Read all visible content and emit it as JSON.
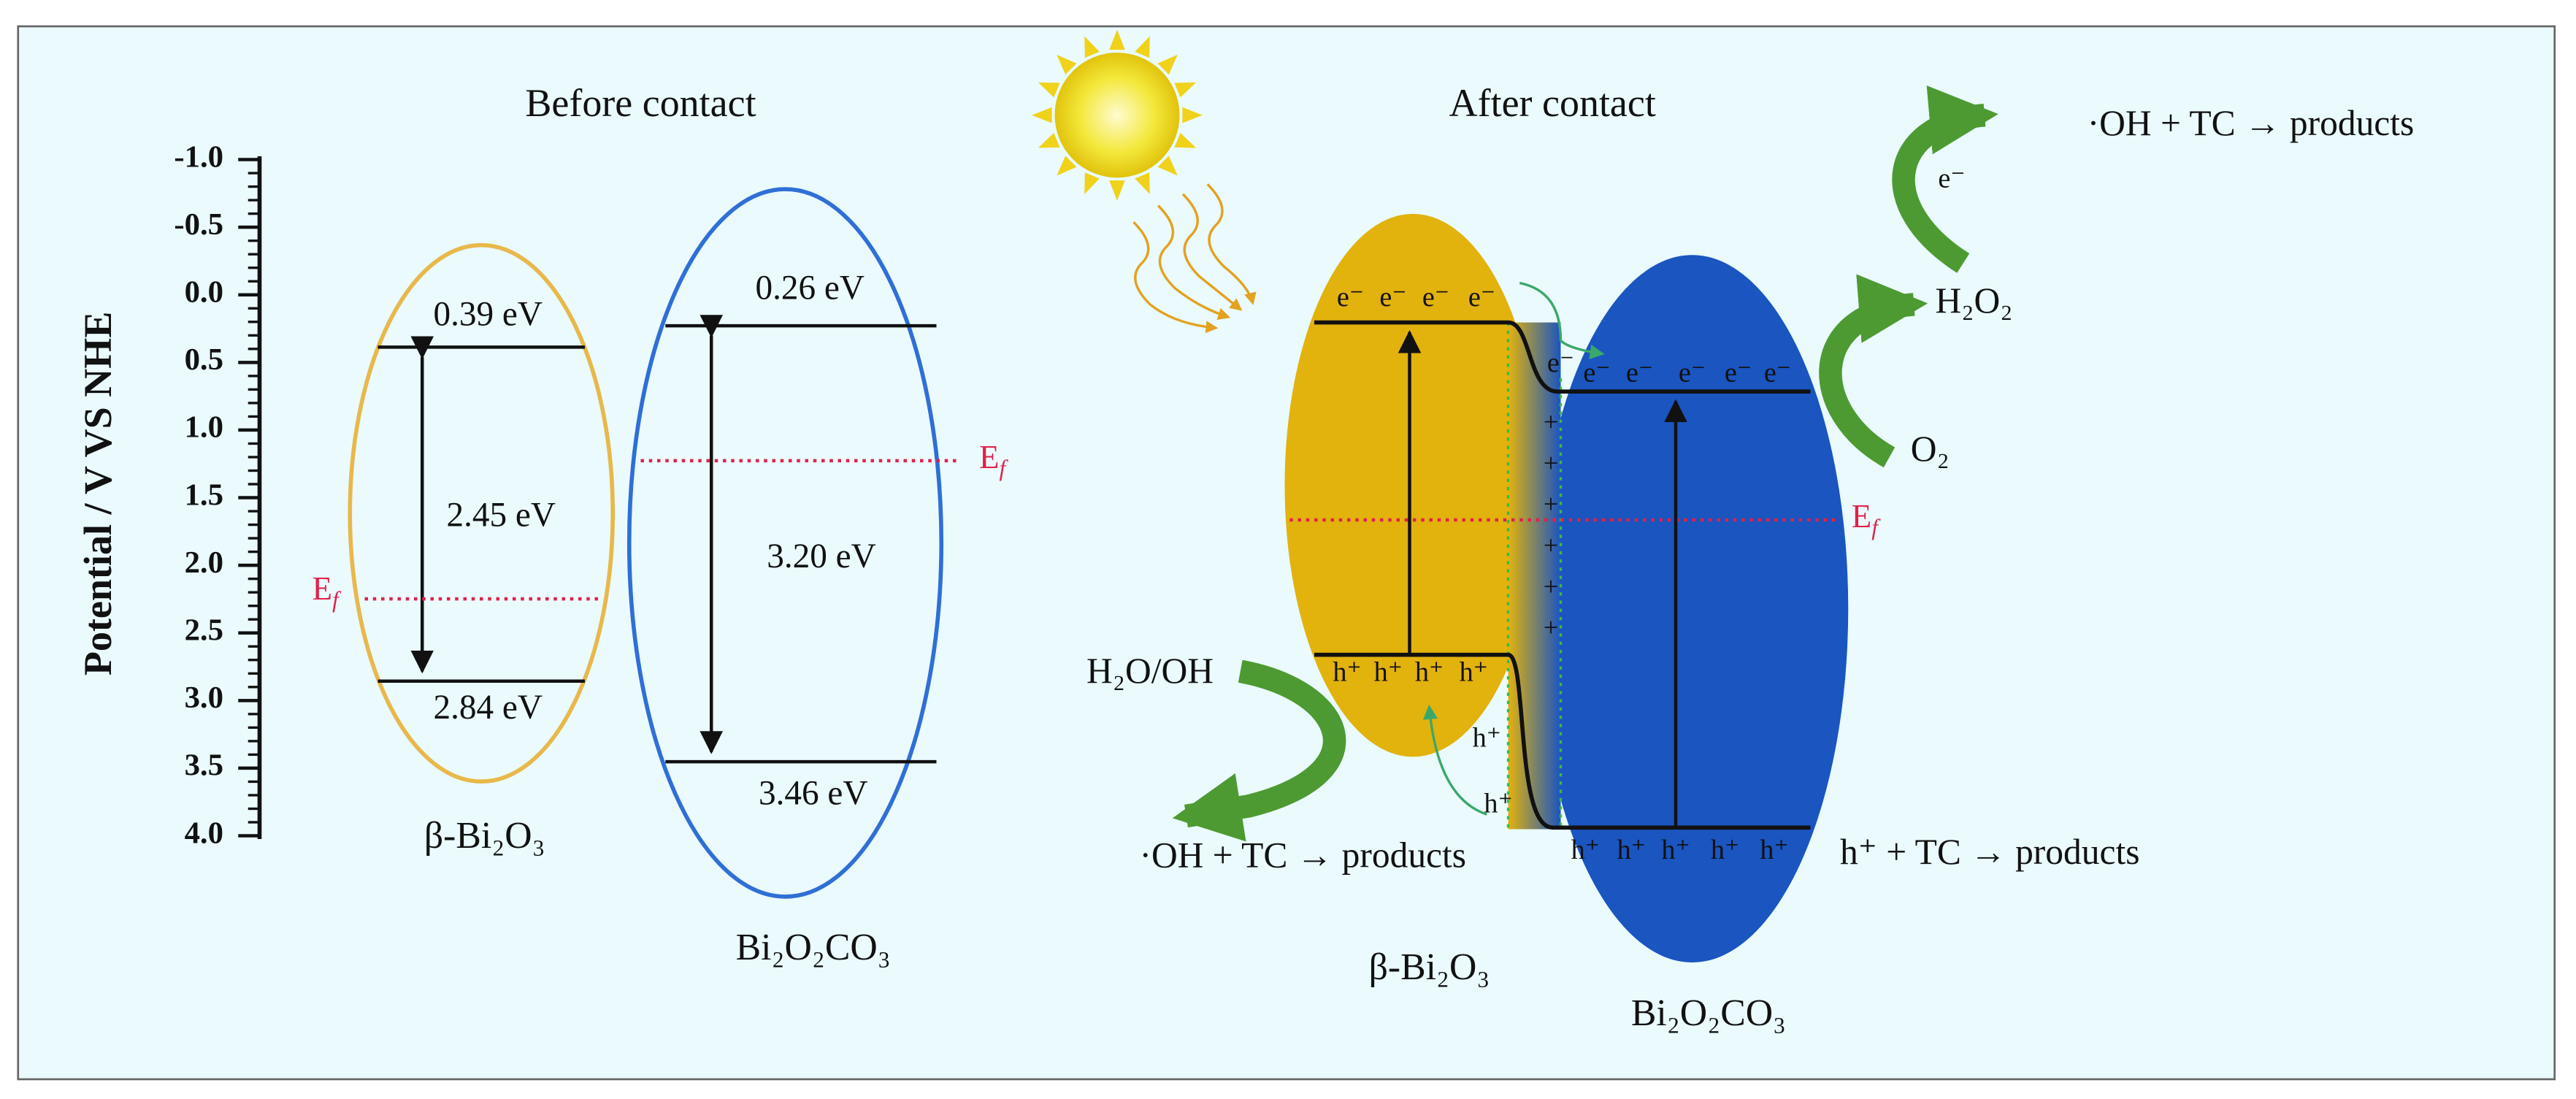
{
  "fermi_level": {
    "main": "E",
    "sub": "f"
  },
  "before_contact": {
    "title": "Before contact",
    "axis": {
      "title": "Potential / V VS NHE",
      "ticks": [
        "-1.0",
        "-0.5",
        "0.0",
        "0.5",
        "1.0",
        "1.5",
        "2.0",
        "2.5",
        "3.0",
        "3.5",
        "4.0"
      ]
    },
    "materials": [
      {
        "name": "β-Bi₂O₃",
        "cb": "0.39 eV",
        "gap": "2.45 eV",
        "vb": "2.84 eV"
      },
      {
        "name": "Bi₂O₂CO₃",
        "cb": "0.26 eV",
        "gap": "3.20 eV",
        "vb": "3.46 eV"
      }
    ]
  },
  "after_contact": {
    "title": "After contact",
    "materials": [
      "β-Bi₂O₃",
      "Bi₂O₂CO₃"
    ],
    "electron": "e⁻",
    "hole": "h⁺",
    "plus": "+",
    "reactions": {
      "oh_products_top": "·OH + TC → products",
      "h2o2": "H₂O₂",
      "o2": "O₂",
      "h2o_oh": "H₂O/OH",
      "oh_products_bottom": "·OH + TC → products",
      "hole_products": "h⁺ + TC → products"
    }
  }
}
